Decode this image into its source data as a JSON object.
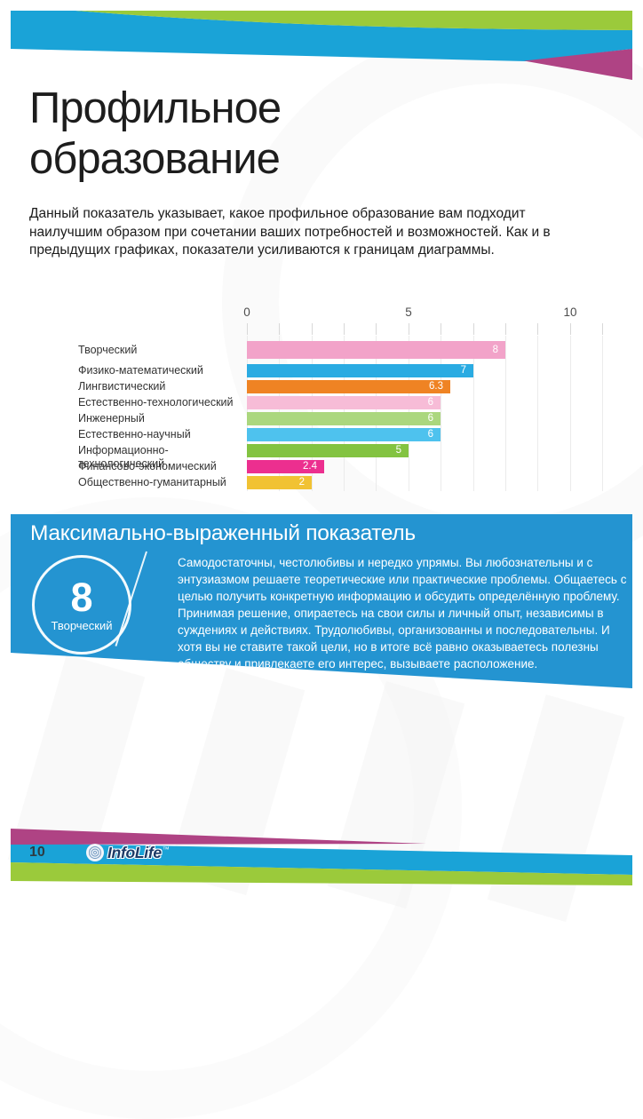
{
  "page": {
    "title": "Профильное\nобразование",
    "intro": "Данный показатель указывает, какое профильное образование вам подходит наилучшим образом при сочетании ваших потребностей и возможностей. Как и в предыдущих графиках, показатели усиливаются к границам диаграммы.",
    "page_number": "10",
    "brand": "InfoLife",
    "trademark": "™"
  },
  "chart_data": {
    "type": "bar",
    "orientation": "horizontal",
    "title": "",
    "categories": [
      "Творческий",
      "Физико-математический",
      "Лингвистический",
      "Естественно-технологический",
      "Инженерный",
      "Естественно-научный",
      "Информационно-технологический",
      "Финансово-экономический",
      "Общественно-гуманитарный"
    ],
    "values": [
      8,
      7,
      6.3,
      6,
      6,
      6,
      5,
      2.4,
      2
    ],
    "value_labels": [
      "8",
      "7",
      "6.3",
      "6",
      "6",
      "6",
      "5",
      "2.4",
      "2"
    ],
    "bar_colors": [
      "#f2a3c9",
      "#2aabe2",
      "#ef8323",
      "#f7bcd7",
      "#abd77e",
      "#4ec2ee",
      "#83c341",
      "#ec2f8f",
      "#f1c233"
    ],
    "x_ticks": [
      0,
      5,
      10
    ],
    "x_tick_labels": [
      "0",
      "5",
      "10"
    ],
    "xlim": [
      0,
      11
    ],
    "grid": true,
    "value_label_color": "#ffffff"
  },
  "highlight": {
    "heading": "Максимально-выраженный показатель",
    "score": "8",
    "score_label": "Творческий",
    "description": "Самодостаточны, честолюбивы и нередко упрямы. Вы любознательны и с энтузиазмом решаете теоретические или практические проблемы. Общаетесь с целью получить конкретную информацию и обсудить определённую проблему. Принимая решение, опираетесь на свои силы и личный опыт, независимы в суждениях и действиях. Трудолюбивы, организованны и последовательны. И хотя вы не ставите такой цели, но в итоге всё равно оказываетесь полезны обществу и привлекаете его интерес, вызываете расположение."
  },
  "colors": {
    "band_green": "#9bca3b",
    "band_blue": "#1aa3d7",
    "band_magenta": "#af4384",
    "panel_blue": "#2494d1"
  }
}
